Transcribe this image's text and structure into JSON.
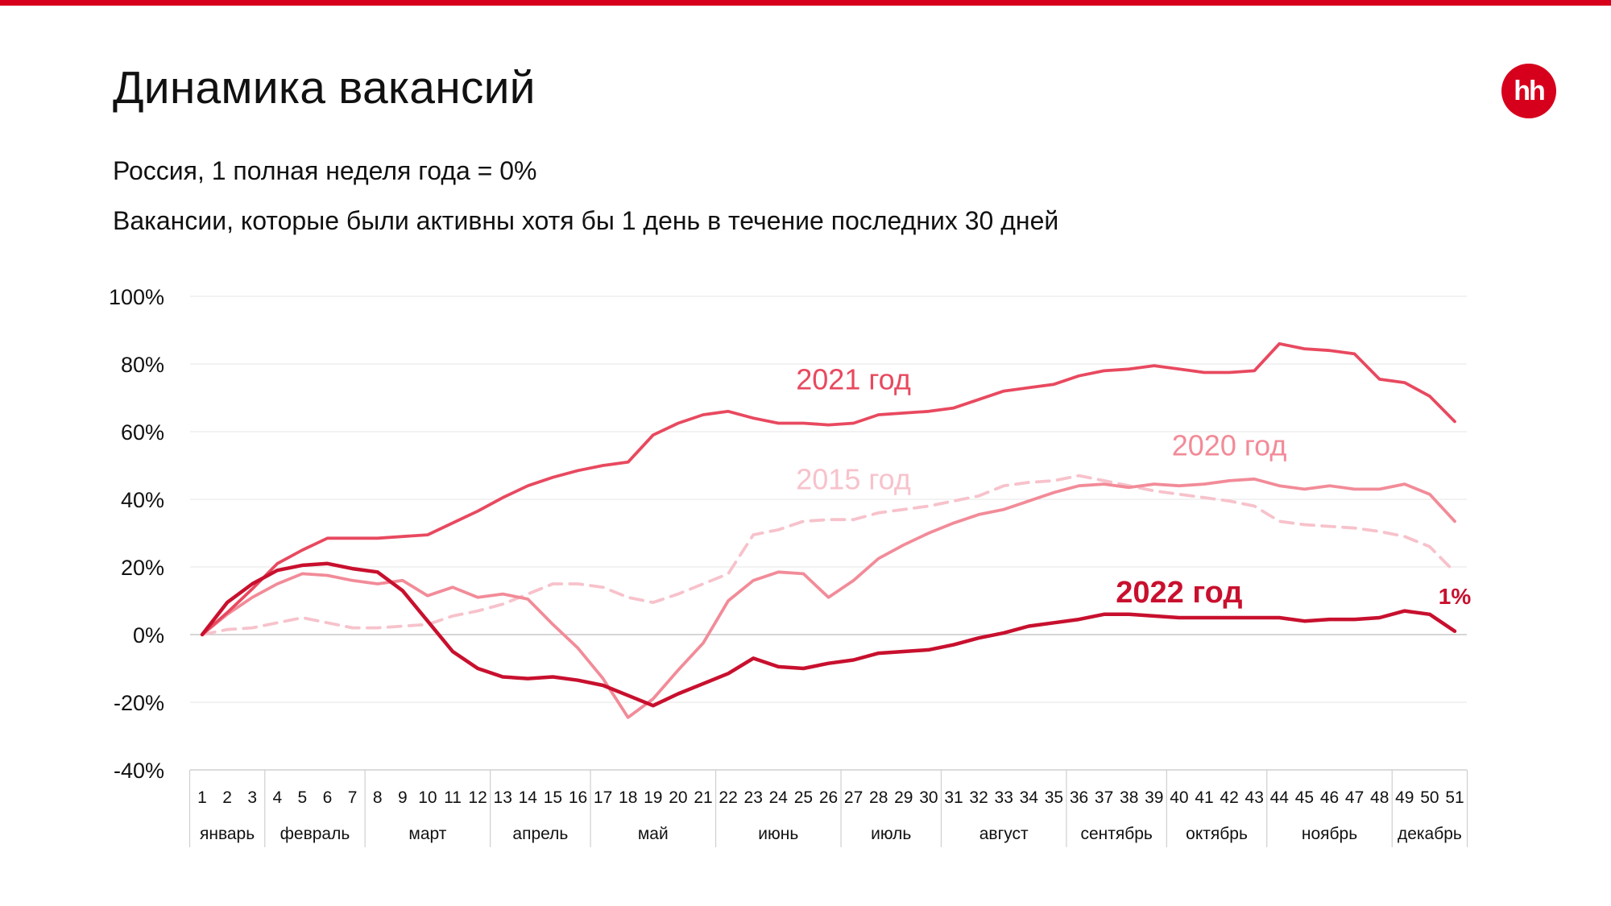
{
  "header": {
    "title": "Динамика вакансий",
    "subtitle_1": "Россия, 1 полная неделя года = 0%",
    "subtitle_2": "Вакансии, которые были активны хотя бы 1 день в течение последних 30 дней",
    "logo_text": "hh"
  },
  "colors": {
    "accent": "#d6001c",
    "y2022": "#c8102e",
    "y2021": "#e8495f",
    "y2020": "#f28b98",
    "y2015": "#f7c2cb",
    "grid": "#e6e6e6",
    "axis": "#cfcfcf"
  },
  "chart_data": {
    "type": "line",
    "ylim": [
      -40,
      100
    ],
    "yticks": [
      "100%",
      "80%",
      "60%",
      "40%",
      "20%",
      "0%",
      "-20%",
      "-40%"
    ],
    "x": [
      1,
      2,
      3,
      4,
      5,
      6,
      7,
      8,
      9,
      10,
      11,
      12,
      13,
      14,
      15,
      16,
      17,
      18,
      19,
      20,
      21,
      22,
      23,
      24,
      25,
      26,
      27,
      28,
      29,
      30,
      31,
      32,
      33,
      34,
      35,
      36,
      37,
      38,
      39,
      40,
      41,
      42,
      43,
      44,
      45,
      46,
      47,
      48,
      49,
      50,
      51
    ],
    "months": [
      {
        "label": "январь",
        "from": 1,
        "to": 3
      },
      {
        "label": "февраль",
        "from": 4,
        "to": 7
      },
      {
        "label": "март",
        "from": 8,
        "to": 12
      },
      {
        "label": "апрель",
        "from": 13,
        "to": 16
      },
      {
        "label": "май",
        "from": 17,
        "to": 21
      },
      {
        "label": "июнь",
        "from": 22,
        "to": 26
      },
      {
        "label": "июль",
        "from": 27,
        "to": 30
      },
      {
        "label": "август",
        "from": 31,
        "to": 35
      },
      {
        "label": "сентябрь",
        "from": 36,
        "to": 39
      },
      {
        "label": "октябрь",
        "from": 40,
        "to": 43
      },
      {
        "label": "ноябрь",
        "from": 44,
        "to": 48
      },
      {
        "label": "декабрь",
        "from": 49,
        "to": 51
      }
    ],
    "series": [
      {
        "name": "2015 год",
        "key": "y2015",
        "dashed": true,
        "label_x": 27,
        "label_y": 43,
        "label_size": 36,
        "label_bold": false,
        "values": [
          0,
          1.5,
          2,
          3.5,
          5,
          3.5,
          2,
          2,
          2.5,
          3,
          5.5,
          7,
          9,
          12,
          15,
          15,
          14,
          11,
          9.5,
          12,
          15,
          18,
          29.5,
          31,
          33.5,
          34,
          34,
          36,
          37,
          38,
          39.5,
          41,
          44,
          45,
          45.5,
          47,
          45.5,
          44,
          42.5,
          41.5,
          40.5,
          39.5,
          38,
          33.5,
          32.5,
          32,
          31.5,
          30.5,
          29,
          26,
          18.5
        ]
      },
      {
        "name": "2020 год",
        "key": "y2020",
        "dashed": false,
        "label_x": 42,
        "label_y": 53,
        "label_size": 36,
        "label_bold": false,
        "values": [
          0,
          6,
          11,
          15,
          18,
          17.5,
          16,
          15,
          16,
          11.5,
          14,
          11,
          12,
          10.5,
          3,
          -4,
          -13,
          -24.5,
          -19,
          -10.5,
          -2.5,
          10,
          16,
          18.5,
          18,
          11,
          16,
          22.5,
          26.5,
          30,
          33,
          35.5,
          37,
          39.5,
          42,
          44,
          44.5,
          43.5,
          44.5,
          44,
          44.5,
          45.5,
          46,
          44,
          43,
          44,
          43,
          43,
          44.5,
          41.5,
          33.5
        ]
      },
      {
        "name": "2021 год",
        "key": "y2021",
        "dashed": false,
        "label_x": 27,
        "label_y": 72.5,
        "label_size": 36,
        "label_bold": false,
        "values": [
          0,
          6.5,
          13.5,
          21,
          25,
          28.5,
          28.5,
          28.5,
          29,
          29.5,
          33,
          36.5,
          40.5,
          44,
          46.5,
          48.5,
          50,
          51,
          59,
          62.5,
          65,
          66,
          64,
          62.5,
          62.5,
          62,
          62.5,
          65,
          65.5,
          66,
          67,
          69.5,
          72,
          73,
          74,
          76.5,
          78,
          78.5,
          79.5,
          78.5,
          77.5,
          77.5,
          78,
          86,
          84.5,
          84,
          83,
          75.5,
          74.5,
          70.5,
          63
        ]
      },
      {
        "name": "2022 год",
        "key": "y2022",
        "dashed": false,
        "label_x": 40,
        "label_y": 9.5,
        "label_size": 38,
        "label_bold": true,
        "values": [
          0,
          9.5,
          15,
          19,
          20.5,
          21,
          19.5,
          18.5,
          13,
          4,
          -5,
          -10,
          -12.5,
          -13,
          -12.5,
          -13.5,
          -15,
          -18,
          -21,
          -17.5,
          -14.5,
          -11.5,
          -7,
          -9.5,
          -10,
          -8.5,
          -7.5,
          -5.5,
          -5,
          -4.5,
          -3,
          -1,
          0.5,
          2.5,
          3.5,
          4.5,
          6,
          6,
          5.5,
          5,
          5,
          5,
          5,
          5,
          4,
          4.5,
          4.5,
          5,
          7,
          6,
          1
        ]
      }
    ],
    "annotation": {
      "text": "1%",
      "x": 51,
      "y": 9,
      "color_key": "y2022"
    }
  }
}
